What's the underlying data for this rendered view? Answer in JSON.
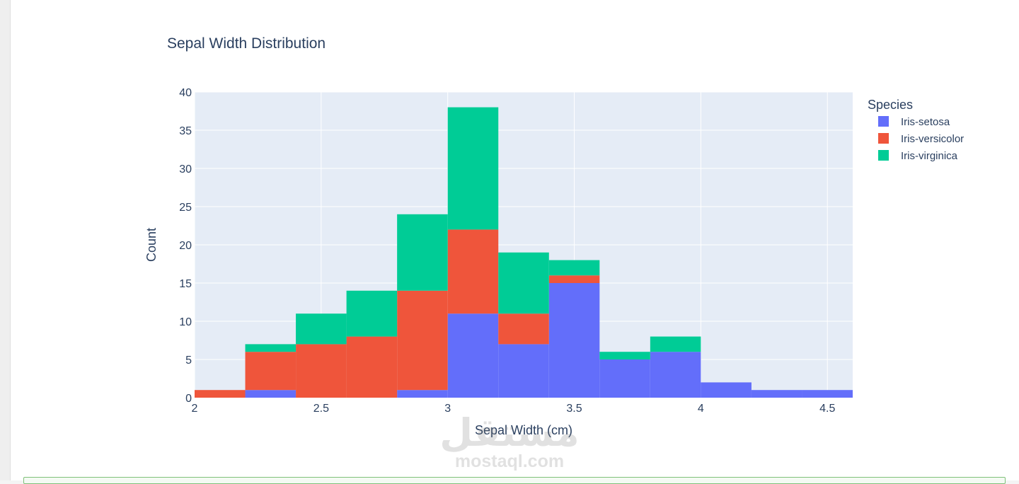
{
  "colors": {
    "plot_bg": "#e5ecf6",
    "grid": "#ffffff",
    "text": "#2a3f5f",
    "setosa": "#636efa",
    "versicolor": "#ef553b",
    "virginica": "#00cc96"
  },
  "watermark": {
    "arabic": "مستقل",
    "latin": "mostaql.com"
  },
  "chart_data": {
    "type": "bar",
    "stacked": true,
    "histogram": true,
    "title": "Sepal Width Distribution",
    "xlabel": "Sepal Width (cm)",
    "ylabel": "Count",
    "xlim": [
      2,
      4.6
    ],
    "ylim": [
      0,
      40
    ],
    "xticks": [
      2,
      2.5,
      3,
      3.5,
      4,
      4.5
    ],
    "xtick_labels": [
      "2",
      "2.5",
      "3",
      "3.5",
      "4",
      "4.5"
    ],
    "yticks": [
      0,
      5,
      10,
      15,
      20,
      25,
      30,
      35,
      40
    ],
    "ytick_labels": [
      "0",
      "5",
      "10",
      "15",
      "20",
      "25",
      "30",
      "35",
      "40"
    ],
    "grid": true,
    "legend_title": "Species",
    "legend_position": "top-right",
    "bin_edges": [
      2.0,
      2.2,
      2.4,
      2.6,
      2.8,
      3.0,
      3.2,
      3.4,
      3.6,
      3.8,
      4.0,
      4.2,
      4.4,
      4.6
    ],
    "series": [
      {
        "name": "Iris-setosa",
        "color": "#636efa",
        "values": [
          0,
          1,
          0,
          0,
          1,
          11,
          7,
          15,
          5,
          6,
          2,
          1,
          1
        ]
      },
      {
        "name": "Iris-versicolor",
        "color": "#ef553b",
        "values": [
          1,
          5,
          7,
          8,
          13,
          11,
          4,
          1,
          0,
          0,
          0,
          0,
          0
        ]
      },
      {
        "name": "Iris-virginica",
        "color": "#00cc96",
        "values": [
          0,
          1,
          4,
          6,
          10,
          16,
          8,
          2,
          1,
          2,
          0,
          0,
          0
        ]
      }
    ]
  }
}
